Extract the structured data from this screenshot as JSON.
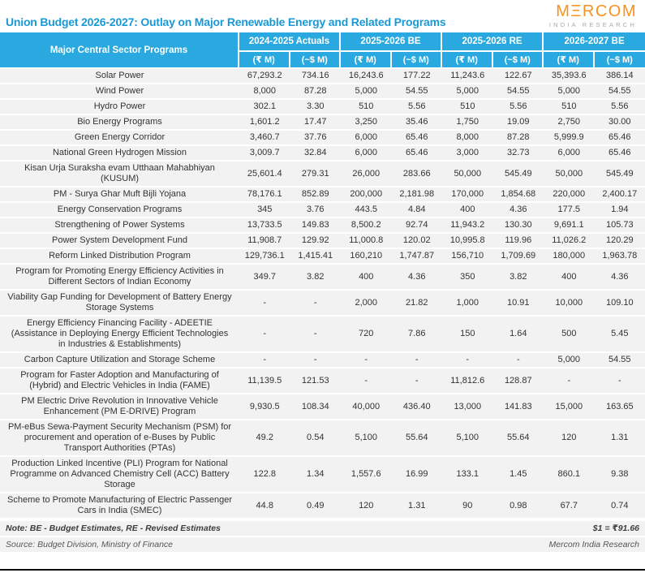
{
  "page": {
    "title": "Union Budget 2026-2027: Outlay on Major Renewable Energy and Related Programs"
  },
  "logo": {
    "brand": "MΞRCOM",
    "sub": "INDIA RESEARCH"
  },
  "chart_data": {
    "type": "table",
    "title": "Union Budget 2026-2027: Outlay on Major Renewable Energy and Related Programs",
    "program_header": "Major Central Sector Programs",
    "column_groups": [
      "2024-2025 Actuals",
      "2025-2026 BE",
      "2025-2026 RE",
      "2026-2027 BE"
    ],
    "sub_headers": [
      "(₹ M)",
      "(~$ M)"
    ],
    "rows": [
      {
        "program": "Solar Power",
        "values": [
          "67,293.2",
          "734.16",
          "16,243.6",
          "177.22",
          "11,243.6",
          "122.67",
          "35,393.6",
          "386.14"
        ]
      },
      {
        "program": "Wind Power",
        "values": [
          "8,000",
          "87.28",
          "5,000",
          "54.55",
          "5,000",
          "54.55",
          "5,000",
          "54.55"
        ]
      },
      {
        "program": "Hydro Power",
        "values": [
          "302.1",
          "3.30",
          "510",
          "5.56",
          "510",
          "5.56",
          "510",
          "5.56"
        ]
      },
      {
        "program": "Bio Energy Programs",
        "values": [
          "1,601.2",
          "17.47",
          "3,250",
          "35.46",
          "1,750",
          "19.09",
          "2,750",
          "30.00"
        ]
      },
      {
        "program": "Green Energy Corridor",
        "values": [
          "3,460.7",
          "37.76",
          "6,000",
          "65.46",
          "8,000",
          "87.28",
          "5,999.9",
          "65.46"
        ]
      },
      {
        "program": "National Green Hydrogen Mission",
        "values": [
          "3,009.7",
          "32.84",
          "6,000",
          "65.46",
          "3,000",
          "32.73",
          "6,000",
          "65.46"
        ]
      },
      {
        "program": "Kisan Urja Suraksha evam Utthaan Mahabhiyan (KUSUM)",
        "values": [
          "25,601.4",
          "279.31",
          "26,000",
          "283.66",
          "50,000",
          "545.49",
          "50,000",
          "545.49"
        ]
      },
      {
        "program": "PM - Surya Ghar Muft Bijli Yojana",
        "values": [
          "78,176.1",
          "852.89",
          "200,000",
          "2,181.98",
          "170,000",
          "1,854.68",
          "220,000",
          "2,400.17"
        ]
      },
      {
        "program": "Energy Conservation Programs",
        "values": [
          "345",
          "3.76",
          "443.5",
          "4.84",
          "400",
          "4.36",
          "177.5",
          "1.94"
        ]
      },
      {
        "program": "Strengthening of Power Systems",
        "values": [
          "13,733.5",
          "149.83",
          "8,500.2",
          "92.74",
          "11,943.2",
          "130.30",
          "9,691.1",
          "105.73"
        ]
      },
      {
        "program": "Power System Development Fund",
        "values": [
          "11,908.7",
          "129.92",
          "11,000.8",
          "120.02",
          "10,995.8",
          "119.96",
          "11,026.2",
          "120.29"
        ]
      },
      {
        "program": "Reform Linked Distribution Program",
        "values": [
          "129,736.1",
          "1,415.41",
          "160,210",
          "1,747.87",
          "156,710",
          "1,709.69",
          "180,000",
          "1,963.78"
        ]
      },
      {
        "program": "Program for Promoting Energy Efficiency Activities in Different Sectors of Indian Economy",
        "values": [
          "349.7",
          "3.82",
          "400",
          "4.36",
          "350",
          "3.82",
          "400",
          "4.36"
        ]
      },
      {
        "program": "Viability Gap Funding for Development of Battery Energy Storage Systems",
        "values": [
          "-",
          "-",
          "2,000",
          "21.82",
          "1,000",
          "10.91",
          "10,000",
          "109.10"
        ]
      },
      {
        "program": "Energy Efficiency Financing Facility - ADEETIE (Assistance in Deploying Energy Efficient Technologies in Industries & Establishments)",
        "values": [
          "-",
          "-",
          "720",
          "7.86",
          "150",
          "1.64",
          "500",
          "5.45"
        ]
      },
      {
        "program": "Carbon Capture Utilization and Storage Scheme",
        "values": [
          "-",
          "-",
          "-",
          "-",
          "-",
          "-",
          "5,000",
          "54.55"
        ]
      },
      {
        "program": "Program for Faster Adoption and Manufacturing of (Hybrid) and Electric Vehicles in India (FAME)",
        "values": [
          "11,139.5",
          "121.53",
          "-",
          "-",
          "11,812.6",
          "128.87",
          "-",
          "-"
        ]
      },
      {
        "program": "PM Electric Drive Revolution in Innovative Vehicle Enhancement (PM E-DRIVE) Program",
        "values": [
          "9,930.5",
          "108.34",
          "40,000",
          "436.40",
          "13,000",
          "141.83",
          "15,000",
          "163.65"
        ]
      },
      {
        "program": "PM-eBus Sewa-Payment Security Mechanism (PSM) for procurement and operation of e-Buses by Public Transport Authorities (PTAs)",
        "values": [
          "49.2",
          "0.54",
          "5,100",
          "55.64",
          "5,100",
          "55.64",
          "120",
          "1.31"
        ]
      },
      {
        "program": "Production Linked Incentive (PLI) Program for National Programme on Advanced Chemistry Cell (ACC) Battery Storage",
        "values": [
          "122.8",
          "1.34",
          "1,557.6",
          "16.99",
          "133.1",
          "1.45",
          "860.1",
          "9.38"
        ]
      },
      {
        "program": "Scheme to Promote Manufacturing of Electric Passenger Cars in India (SMEC)",
        "values": [
          "44.8",
          "0.49",
          "120",
          "1.31",
          "90",
          "0.98",
          "67.7",
          "0.74"
        ]
      }
    ]
  },
  "footer": {
    "note": "Note: BE - Budget Estimates, RE - Revised Estimates",
    "exchange_rate": "$1 = ₹91.66",
    "source": "Source: Budget Division, Ministry of Finance",
    "credit": "Mercom India Research"
  },
  "colors": {
    "title_blue": "#1899D6",
    "header_blue": "#29A9E0",
    "logo_orange": "#F6921E",
    "logo_gray": "#A6A8AB",
    "row_bg": "#F2F2F2",
    "body_text": "#333333",
    "rule_black": "#0A0A0A"
  }
}
